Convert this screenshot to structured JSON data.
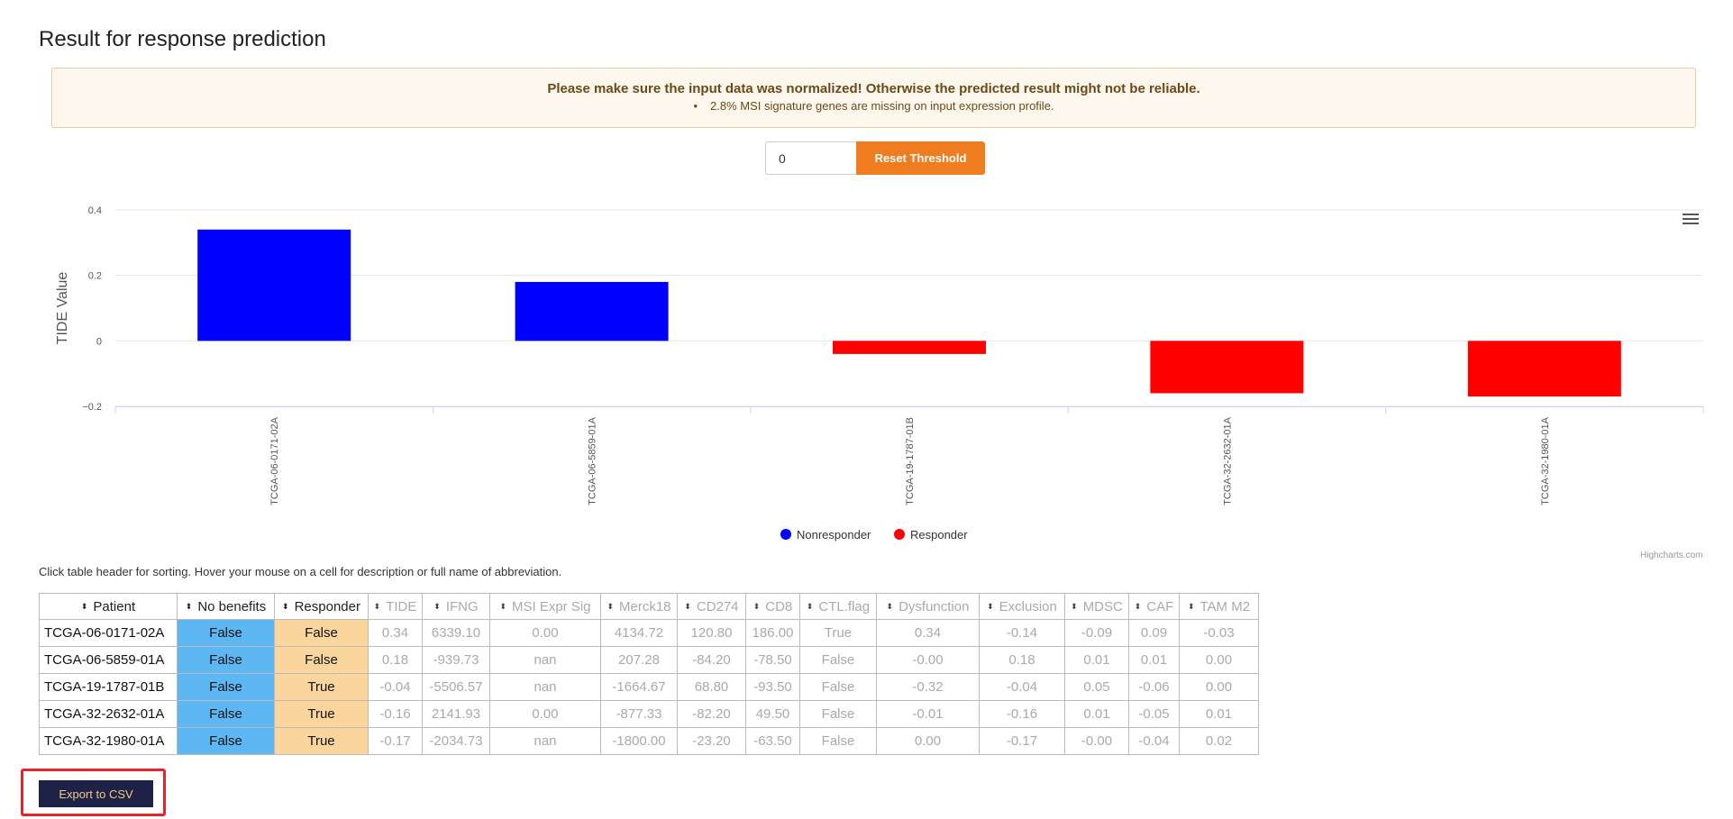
{
  "page": {
    "title": "Result for response prediction",
    "alert_title": "Please make sure the input data was normalized! Otherwise the predicted result might not be reliable.",
    "alert_items": [
      "2.8% MSI signature genes are missing on input expression profile."
    ],
    "threshold_value": "0",
    "reset_label": "Reset Threshold",
    "hint": "Click table header for sorting. Hover your mouse on a cell for description or full name of abbreviation.",
    "export_label": "Export to CSV",
    "credits": "Highcharts.com"
  },
  "chart_data": {
    "type": "bar",
    "ylabel": "TIDE Value",
    "xlabel": "",
    "ylim": [
      -0.2,
      0.4
    ],
    "yticks": [
      "0.4",
      "0.2",
      "0",
      "−0.2"
    ],
    "categories": [
      "TCGA-06-0171-02A",
      "TCGA-06-5859-01A",
      "TCGA-19-1787-01B",
      "TCGA-32-2632-01A",
      "TCGA-32-1980-01A"
    ],
    "values": [
      0.34,
      0.18,
      -0.04,
      -0.16,
      -0.17
    ],
    "classes": [
      "Nonresponder",
      "Nonresponder",
      "Responder",
      "Responder",
      "Responder"
    ],
    "legend": [
      {
        "name": "Nonresponder",
        "color": "#0000ff"
      },
      {
        "name": "Responder",
        "color": "#ff0000"
      }
    ],
    "legend_position": "bottom-center"
  },
  "table": {
    "headers": [
      "Patient",
      "No benefits",
      "Responder",
      "TIDE",
      "IFNG",
      "MSI Expr Sig",
      "Merck18",
      "CD274",
      "CD8",
      "CTL.flag",
      "Dysfunction",
      "Exclusion",
      "MDSC",
      "CAF",
      "TAM M2"
    ],
    "rows": [
      [
        "TCGA-06-0171-02A",
        "False",
        "False",
        "0.34",
        "6339.10",
        "0.00",
        "4134.72",
        "120.80",
        "186.00",
        "True",
        "0.34",
        "-0.14",
        "-0.09",
        "0.09",
        "-0.03"
      ],
      [
        "TCGA-06-5859-01A",
        "False",
        "False",
        "0.18",
        "-939.73",
        "nan",
        "207.28",
        "-84.20",
        "-78.50",
        "False",
        "-0.00",
        "0.18",
        "0.01",
        "0.01",
        "0.00"
      ],
      [
        "TCGA-19-1787-01B",
        "False",
        "True",
        "-0.04",
        "-5506.57",
        "nan",
        "-1664.67",
        "68.80",
        "-93.50",
        "False",
        "-0.32",
        "-0.04",
        "0.05",
        "-0.06",
        "0.00"
      ],
      [
        "TCGA-32-2632-01A",
        "False",
        "True",
        "-0.16",
        "2141.93",
        "0.00",
        "-877.33",
        "-82.20",
        "49.50",
        "False",
        "-0.01",
        "-0.16",
        "0.01",
        "-0.05",
        "0.01"
      ],
      [
        "TCGA-32-1980-01A",
        "False",
        "True",
        "-0.17",
        "-2034.73",
        "nan",
        "-1800.00",
        "-23.20",
        "-63.50",
        "False",
        "0.00",
        "-0.17",
        "-0.00",
        "-0.04",
        "0.02"
      ]
    ]
  }
}
